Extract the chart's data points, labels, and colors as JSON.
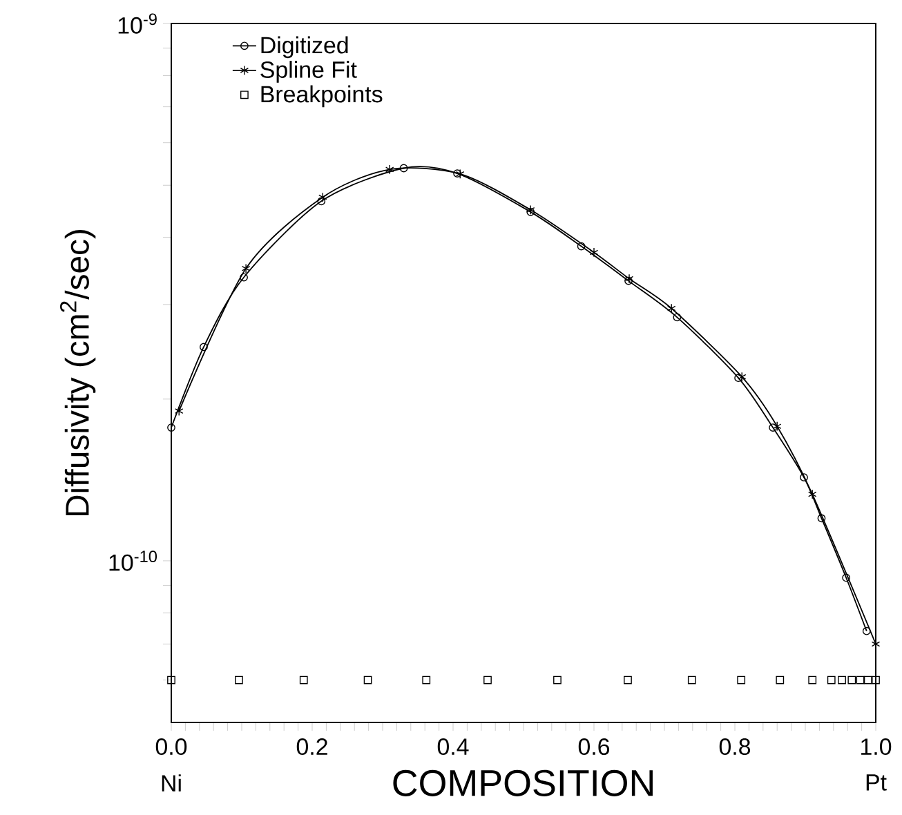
{
  "chart_data": {
    "type": "line",
    "xlabel": "COMPOSITION",
    "ylabel": "Diffusivity  (cm$^{2}$/sec)",
    "log": "y",
    "xlim": [
      0,
      1
    ],
    "ylim": [
      5e-11,
      1e-09
    ],
    "xticks": [
      {
        "value": 0,
        "label": "0.0"
      },
      {
        "value": 0.02,
        "label": null
      },
      {
        "value": 0.04,
        "label": null
      },
      {
        "value": 0.06,
        "label": null
      },
      {
        "value": 0.08,
        "label": null
      },
      {
        "value": 0.1,
        "label": null
      },
      {
        "value": 0.12,
        "label": null
      },
      {
        "value": 0.14,
        "label": null
      },
      {
        "value": 0.16,
        "label": null
      },
      {
        "value": 0.18,
        "label": null
      },
      {
        "value": 0.2,
        "label": "0.2"
      },
      {
        "value": 0.22,
        "label": null
      },
      {
        "value": 0.24,
        "label": null
      },
      {
        "value": 0.26,
        "label": null
      },
      {
        "value": 0.28,
        "label": null
      },
      {
        "value": 0.3,
        "label": null
      },
      {
        "value": 0.32,
        "label": null
      },
      {
        "value": 0.34,
        "label": null
      },
      {
        "value": 0.36,
        "label": null
      },
      {
        "value": 0.38,
        "label": null
      },
      {
        "value": 0.4,
        "label": "0.4"
      },
      {
        "value": 0.42,
        "label": null
      },
      {
        "value": 0.44,
        "label": null
      },
      {
        "value": 0.46,
        "label": null
      },
      {
        "value": 0.48,
        "label": null
      },
      {
        "value": 0.5,
        "label": null
      },
      {
        "value": 0.52,
        "label": null
      },
      {
        "value": 0.54,
        "label": null
      },
      {
        "value": 0.56,
        "label": null
      },
      {
        "value": 0.58,
        "label": null
      },
      {
        "value": 0.6,
        "label": "0.6"
      },
      {
        "value": 0.62,
        "label": null
      },
      {
        "value": 0.64,
        "label": null
      },
      {
        "value": 0.66,
        "label": null
      },
      {
        "value": 0.68,
        "label": null
      },
      {
        "value": 0.7,
        "label": null
      },
      {
        "value": 0.72,
        "label": null
      },
      {
        "value": 0.74,
        "label": null
      },
      {
        "value": 0.76,
        "label": null
      },
      {
        "value": 0.78,
        "label": null
      },
      {
        "value": 0.8,
        "label": "0.8"
      },
      {
        "value": 0.82,
        "label": null
      },
      {
        "value": 0.84,
        "label": null
      },
      {
        "value": 0.86,
        "label": null
      },
      {
        "value": 0.88,
        "label": null
      },
      {
        "value": 0.9,
        "label": null
      },
      {
        "value": 0.92,
        "label": null
      },
      {
        "value": 0.94,
        "label": null
      },
      {
        "value": 0.96,
        "label": null
      },
      {
        "value": 0.98,
        "label": null
      },
      {
        "value": 1,
        "label": "1.0"
      }
    ],
    "yticks": [
      {
        "value": 6e-11,
        "label": null
      },
      {
        "value": 7e-11,
        "label": null
      },
      {
        "value": 8e-11,
        "label": null
      },
      {
        "value": 9e-11,
        "label": null
      },
      {
        "value": 1e-10,
        "label": "10$^{-10}$"
      },
      {
        "value": 2e-10,
        "label": null
      },
      {
        "value": 3e-10,
        "label": null
      },
      {
        "value": 4e-10,
        "label": null
      },
      {
        "value": 5e-10,
        "label": null
      },
      {
        "value": 6e-10,
        "label": null
      },
      {
        "value": 7e-10,
        "label": null
      },
      {
        "value": 8e-10,
        "label": null
      },
      {
        "value": 9e-10,
        "label": null
      },
      {
        "value": 1e-09,
        "label": "10$^{-9}$"
      }
    ],
    "grid": false,
    "legend": "top left",
    "annotations": [
      "Ni",
      "Pt"
    ],
    "series": [
      {
        "name": "Digitized",
        "color": "#000000",
        "marker": "circle",
        "line_style": "solid",
        "x": [
          0,
          0.046,
          0.103,
          0.213,
          0.33,
          0.406,
          0.51,
          0.582,
          0.649,
          0.718,
          0.805,
          0.854,
          0.898,
          0.923,
          0.958,
          0.987
        ],
        "values": [
          1.77e-10,
          2.5e-10,
          3.37e-10,
          4.67e-10,
          5.38e-10,
          5.26e-10,
          4.46e-10,
          3.85e-10,
          3.32e-10,
          2.84e-10,
          2.19e-10,
          1.77e-10,
          1.43e-10,
          1.2e-10,
          9.3e-11,
          7.4e-11
        ]
      },
      {
        "name": "Spline Fit",
        "color": "#000000",
        "marker": "cross",
        "line_style": "solid",
        "x": [
          0.011,
          0.106,
          0.215,
          0.31,
          0.41,
          0.51,
          0.6,
          0.65,
          0.71,
          0.81,
          0.86,
          0.91,
          1.0
        ],
        "values": [
          1.9e-10,
          3.5e-10,
          4.75e-10,
          5.35e-10,
          5.25e-10,
          4.5e-10,
          3.75e-10,
          3.35e-10,
          2.95e-10,
          2.2e-10,
          1.78e-10,
          1.33e-10,
          7e-11
        ]
      },
      {
        "name": "Breakpoints",
        "color": "#000000",
        "type": "scatter",
        "marker": "square",
        "x": [
          0,
          0.096,
          0.188,
          0.279,
          0.362,
          0.449,
          0.548,
          0.648,
          0.739,
          0.809,
          0.864,
          0.91,
          0.937,
          0.952,
          0.966,
          0.978,
          0.989,
          1.0
        ],
        "values": [
          6e-11,
          6e-11,
          6e-11,
          6e-11,
          6e-11,
          6e-11,
          6e-11,
          6e-11,
          6e-11,
          6e-11,
          6e-11,
          6e-11,
          6e-11,
          6e-11,
          6e-11,
          6e-11,
          6e-11,
          6e-11
        ]
      }
    ]
  }
}
